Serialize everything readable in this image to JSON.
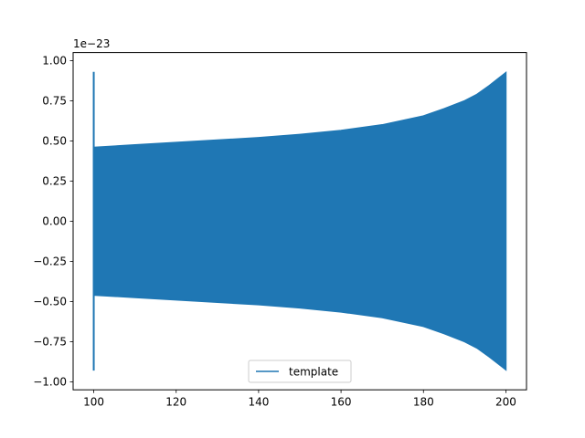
{
  "chart_data": {
    "type": "line",
    "title": "",
    "xlabel": "",
    "ylabel": "",
    "y_offset_label": "1e−23",
    "xlim": [
      95,
      205
    ],
    "ylim": [
      -1.05,
      1.05
    ],
    "x_ticks": [
      100,
      120,
      140,
      160,
      180,
      200
    ],
    "x_tick_labels": [
      "100",
      "120",
      "140",
      "160",
      "180",
      "200"
    ],
    "y_ticks": [
      1.0,
      0.75,
      0.5,
      0.25,
      0.0,
      -0.25,
      -0.5,
      -0.75,
      -1.0
    ],
    "y_tick_labels": [
      "1.00",
      "0.75",
      "0.50",
      "0.25",
      "0.00",
      "−0.25",
      "−0.50",
      "−0.75",
      "−1.00"
    ],
    "grid": false,
    "legend_position": "bottom-center",
    "series": [
      {
        "name": "template",
        "color": "#1f77b4",
        "description_of_shape": "oscillating chirp with rising amplitude envelope",
        "spike": {
          "x": 100,
          "y_min": -0.93,
          "y_max": 0.93
        },
        "envelope": {
          "x": [
            100,
            110,
            120,
            130,
            140,
            150,
            160,
            170,
            180,
            185,
            190,
            193,
            196,
            198,
            199,
            200
          ],
          "upper": [
            0.46,
            0.475,
            0.49,
            0.505,
            0.52,
            0.54,
            0.565,
            0.6,
            0.655,
            0.7,
            0.75,
            0.79,
            0.845,
            0.885,
            0.905,
            0.925
          ],
          "lower": [
            -0.46,
            -0.475,
            -0.49,
            -0.505,
            -0.52,
            -0.54,
            -0.565,
            -0.6,
            -0.655,
            -0.7,
            -0.75,
            -0.79,
            -0.845,
            -0.885,
            -0.905,
            -0.925
          ]
        }
      }
    ]
  }
}
